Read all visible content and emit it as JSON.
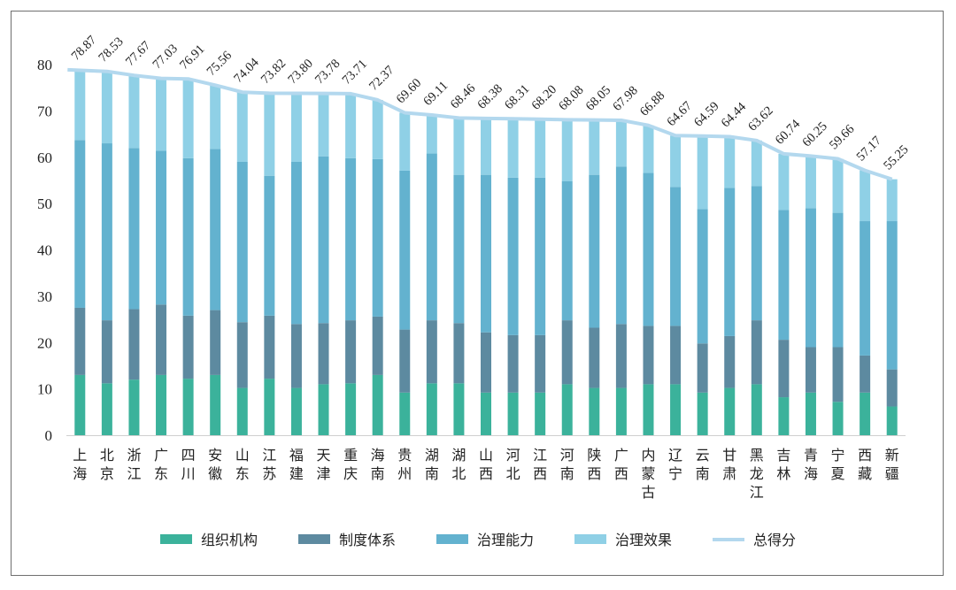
{
  "chart_data": {
    "type": "bar",
    "stacked": true,
    "title": "",
    "xlabel": "",
    "ylabel": "",
    "ylim": [
      0,
      80
    ],
    "yticks": [
      0,
      10,
      20,
      30,
      40,
      50,
      60,
      70,
      80
    ],
    "grid": false,
    "legend_position": "bottom",
    "categories": [
      "上海",
      "北京",
      "浙江",
      "广东",
      "四川",
      "安徽",
      "山东",
      "江苏",
      "福建",
      "天津",
      "重庆",
      "海南",
      "贵州",
      "湖南",
      "湖北",
      "山西",
      "河北",
      "江西",
      "河南",
      "陕西",
      "广西",
      "内蒙古",
      "辽宁",
      "云南",
      "甘肃",
      "黑龙江",
      "吉林",
      "青海",
      "宁夏",
      "西藏",
      "新疆"
    ],
    "series": [
      {
        "name": "组织机构",
        "color": "#3bb29b",
        "values": [
          13.0,
          11.2,
          12.0,
          13.0,
          12.2,
          13.0,
          10.2,
          12.2,
          10.2,
          11.0,
          11.2,
          13.0,
          9.2,
          11.2,
          11.2,
          9.2,
          9.2,
          9.2,
          11.0,
          10.2,
          10.2,
          11.0,
          11.0,
          9.2,
          10.2,
          11.0,
          8.2,
          9.2,
          7.2,
          9.2,
          6.2
        ]
      },
      {
        "name": "制度体系",
        "color": "#5d8aa0",
        "values": [
          14.5,
          13.6,
          15.2,
          15.2,
          13.6,
          14.0,
          14.2,
          13.6,
          13.8,
          13.2,
          13.6,
          12.6,
          13.6,
          13.6,
          13.0,
          13.0,
          12.4,
          12.4,
          13.8,
          13.0,
          13.8,
          12.6,
          12.6,
          10.6,
          11.2,
          13.8,
          12.4,
          9.8,
          11.8,
          8.0,
          8.0
        ]
      },
      {
        "name": "治理能力",
        "color": "#63b2cf",
        "values": [
          36.2,
          38.2,
          34.8,
          33.2,
          34.0,
          34.8,
          34.6,
          30.2,
          35.0,
          36.0,
          35.0,
          34.0,
          34.3,
          36.0,
          32.0,
          34.0,
          34.0,
          34.0,
          30.0,
          33.0,
          34.0,
          33.0,
          30.0,
          29.0,
          32.0,
          29.0,
          28.0,
          30.0,
          29.0,
          29.0,
          32.0
        ]
      },
      {
        "name": "治理效果",
        "color": "#8fd0e6",
        "values": [
          15.17,
          15.53,
          15.67,
          15.63,
          17.11,
          13.76,
          15.04,
          17.82,
          14.8,
          13.58,
          13.91,
          12.77,
          12.5,
          8.31,
          12.26,
          12.18,
          12.71,
          12.6,
          13.28,
          11.85,
          9.98,
          10.28,
          11.07,
          15.79,
          11.04,
          9.82,
          12.14,
          11.25,
          11.66,
          10.97,
          9.05
        ]
      }
    ],
    "total": {
      "name": "总得分",
      "color": "#b3d8ee",
      "values": [
        78.87,
        78.53,
        77.67,
        77.03,
        76.91,
        75.56,
        74.04,
        73.82,
        73.8,
        73.78,
        73.71,
        72.37,
        69.6,
        69.11,
        68.46,
        68.38,
        68.31,
        68.2,
        68.08,
        68.05,
        67.98,
        66.88,
        64.67,
        64.59,
        64.44,
        63.62,
        60.74,
        60.25,
        59.66,
        57.17,
        55.25
      ]
    },
    "data_labels": [
      "78.87",
      "78.53",
      "77.67",
      "77.03",
      "76.91",
      "75.56",
      "74.04",
      "73.82",
      "73.80",
      "73.78",
      "73.71",
      "72.37",
      "69.60",
      "69.11",
      "68.46",
      "68.38",
      "68.31",
      "68.20",
      "68.08",
      "68.05",
      "67.98",
      "66.88",
      "64.67",
      "64.59",
      "64.44",
      "63.62",
      "60.74",
      "60.25",
      "59.66",
      "57.17",
      "55.25"
    ]
  }
}
